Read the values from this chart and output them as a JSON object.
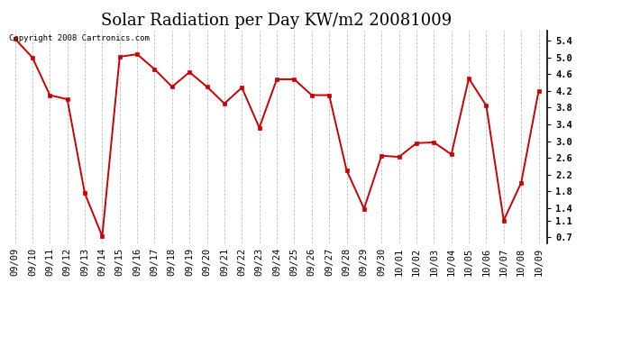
{
  "title": "Solar Radiation per Day KW/m2 20081009",
  "copyright_text": "Copyright 2008 Cartronics.com",
  "dates": [
    "09/09",
    "09/10",
    "09/11",
    "09/12",
    "09/13",
    "09/14",
    "09/15",
    "09/16",
    "09/17",
    "09/18",
    "09/19",
    "09/20",
    "09/21",
    "09/22",
    "09/23",
    "09/24",
    "09/25",
    "09/26",
    "09/27",
    "09/28",
    "09/29",
    "09/30",
    "10/01",
    "10/02",
    "10/03",
    "10/04",
    "10/05",
    "10/06",
    "10/07",
    "10/08",
    "10/09"
  ],
  "values": [
    5.45,
    5.0,
    4.1,
    4.0,
    1.75,
    0.72,
    5.02,
    5.08,
    4.72,
    4.3,
    4.65,
    4.3,
    3.9,
    4.28,
    3.32,
    4.48,
    4.48,
    4.1,
    4.1,
    2.3,
    1.38,
    2.65,
    2.62,
    2.95,
    2.97,
    2.68,
    4.5,
    3.85,
    1.1,
    2.0,
    4.2
  ],
  "line_color": "#cc0000",
  "marker_color": "#cc0000",
  "bg_color": "#ffffff",
  "grid_color": "#c0c0c0",
  "yticks": [
    0.7,
    1.1,
    1.4,
    1.8,
    2.2,
    2.6,
    3.0,
    3.4,
    3.8,
    4.2,
    4.6,
    5.0,
    5.4
  ],
  "ylim": [
    0.55,
    5.65
  ],
  "title_fontsize": 13,
  "tick_fontsize": 7.5,
  "copyright_fontsize": 6.5
}
